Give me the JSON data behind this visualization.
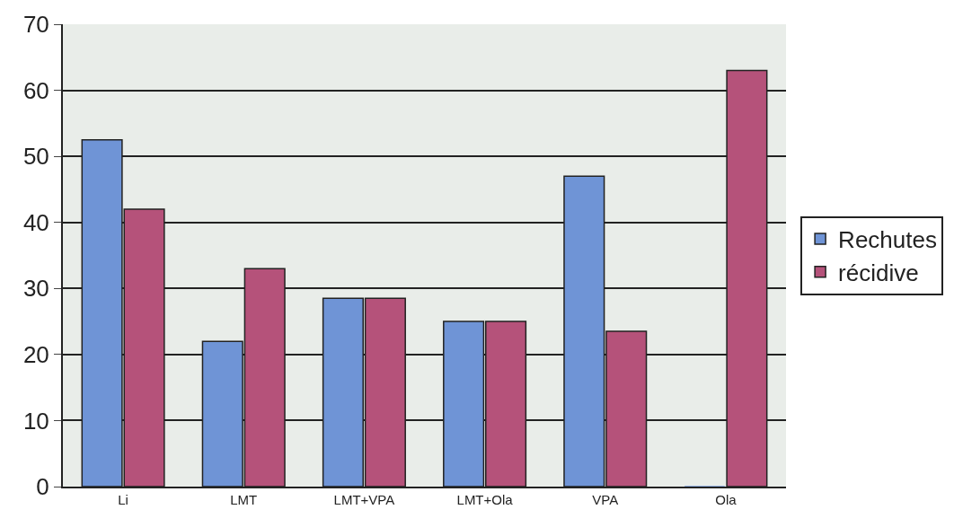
{
  "chart_data": {
    "type": "bar",
    "categories": [
      "Li",
      "LMT",
      "LMT+VPA",
      "LMT+Ola",
      "VPA",
      "Ola"
    ],
    "series": [
      {
        "name": "Rechutes",
        "color": "#6f94d6",
        "values": [
          52.5,
          22,
          28.5,
          25,
          47,
          0
        ]
      },
      {
        "name": "récidive",
        "color": "#b5527a",
        "values": [
          42,
          33,
          28.5,
          25,
          23.5,
          63
        ]
      }
    ],
    "ylim": [
      0,
      70
    ],
    "yticks": [
      0,
      10,
      20,
      30,
      40,
      50,
      60,
      70
    ],
    "grid": "y",
    "legend": "right"
  }
}
